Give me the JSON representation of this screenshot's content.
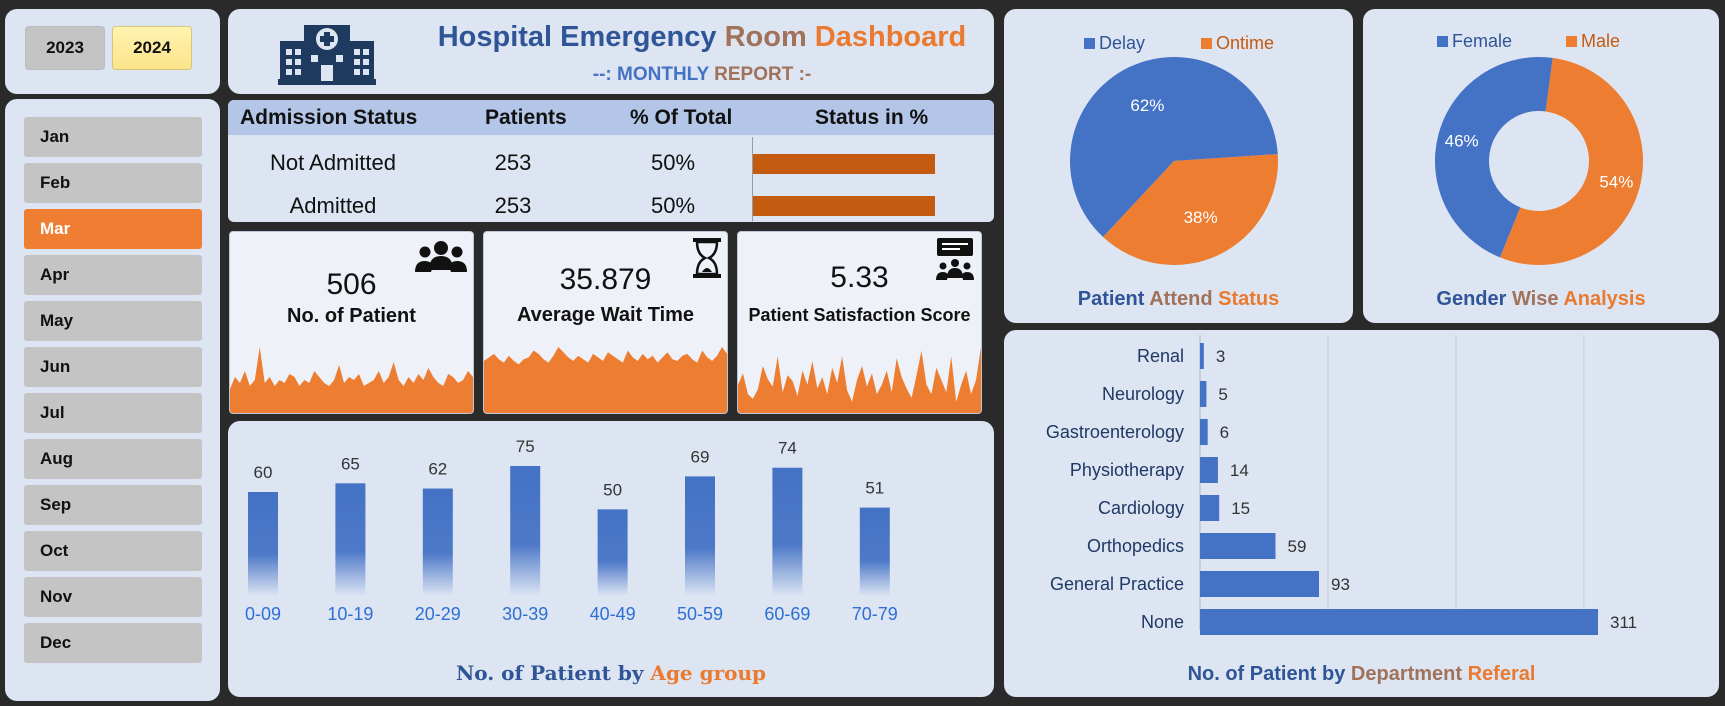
{
  "years": [
    {
      "label": "2023",
      "selected": false
    },
    {
      "label": "2024",
      "selected": true
    }
  ],
  "months": [
    {
      "label": "Jan",
      "selected": false
    },
    {
      "label": "Feb",
      "selected": false
    },
    {
      "label": "Mar",
      "selected": true
    },
    {
      "label": "Apr",
      "selected": false
    },
    {
      "label": "May",
      "selected": false
    },
    {
      "label": "Jun",
      "selected": false
    },
    {
      "label": "Jul",
      "selected": false
    },
    {
      "label": "Aug",
      "selected": false
    },
    {
      "label": "Sep",
      "selected": false
    },
    {
      "label": "Oct",
      "selected": false
    },
    {
      "label": "Nov",
      "selected": false
    },
    {
      "label": "Dec",
      "selected": false
    }
  ],
  "header": {
    "title_part1": "Hospital Emergency ",
    "title_part2": "Room ",
    "title_part3": "Dashboard",
    "subtitle_part1": "--: MONTHLY ",
    "subtitle_part2": "REPORT  :-",
    "icon": "hospital-icon"
  },
  "admission": {
    "headers": [
      "Admission Status",
      "Patients",
      "% Of Total",
      "Status in %"
    ],
    "rows": [
      {
        "status": "Not Admitted",
        "patients": "253",
        "pct": "50%",
        "share": 0.5
      },
      {
        "status": "Admitted",
        "patients": "253",
        "pct": "50%",
        "share": 0.5
      }
    ]
  },
  "kpis": [
    {
      "value": "506",
      "label": "No. of Patient",
      "icon": "people-group-icon"
    },
    {
      "value": "35.879",
      "label": "Average Wait Time",
      "icon": "hourglass-icon"
    },
    {
      "value": "5.33",
      "label": "Patient Satisfaction Score",
      "icon": "presentation-audience-icon"
    }
  ],
  "colors": {
    "accent_orange": "#ed7d31",
    "accent_blue": "#4472c4",
    "title_blue": "#2f5597",
    "bar_dark_orange": "#c55a11"
  },
  "chart_data": [
    {
      "type": "bar",
      "title": "No. of Patient by Age group",
      "title_part1": "No. of Patient by ",
      "title_part2": "Age group",
      "categories": [
        "0-09",
        "10-19",
        "20-29",
        "30-39",
        "40-49",
        "50-59",
        "60-69",
        "70-79"
      ],
      "values": [
        60,
        65,
        62,
        75,
        50,
        69,
        74,
        51
      ],
      "ylim": [
        0,
        80
      ]
    },
    {
      "type": "pie",
      "title": "Patient Attend Status",
      "title_part1": "Patient ",
      "title_part2": "Attend ",
      "title_part3": "Status",
      "legend_position": "top",
      "slices": [
        {
          "name": "Delay",
          "value": 62,
          "label": "62%",
          "color": "#4472c4"
        },
        {
          "name": "Ontime",
          "value": 38,
          "label": "38%",
          "color": "#ed7d31"
        }
      ]
    },
    {
      "type": "pie",
      "title": "Gender Wise Analysis",
      "title_part1": "Gender ",
      "title_part2": "Wise ",
      "title_part3": "Analysis",
      "donut": true,
      "legend_position": "top",
      "slices": [
        {
          "name": "Female",
          "value": 46,
          "label": "46%",
          "color": "#4472c4"
        },
        {
          "name": "Male",
          "value": 54,
          "label": "54%",
          "color": "#ed7d31"
        }
      ]
    },
    {
      "type": "bar",
      "orientation": "horizontal",
      "title": "No. of Patient by Department Referal",
      "title_part1": "No. of Patient by ",
      "title_part2": "Department ",
      "title_part3": "Referal",
      "categories": [
        "Renal",
        "Neurology",
        "Gastroenterology",
        "Physiotherapy",
        "Cardiology",
        "Orthopedics",
        "General Practice",
        "None"
      ],
      "values": [
        3,
        5,
        6,
        14,
        15,
        59,
        93,
        311
      ],
      "xlim": [
        0,
        400
      ],
      "grid": true
    }
  ],
  "sparklines": [
    [
      8,
      12,
      10,
      14,
      9,
      11,
      22,
      10,
      12,
      9,
      11,
      10,
      13,
      12,
      9,
      11,
      10,
      14,
      12,
      10,
      9,
      11,
      16,
      10,
      12,
      11,
      13,
      9,
      10,
      11,
      14,
      10,
      12,
      17,
      11,
      9,
      12,
      10,
      13,
      11,
      15,
      12,
      10,
      9,
      13,
      12,
      10,
      11,
      14,
      12
    ],
    [
      30,
      32,
      34,
      31,
      29,
      33,
      30,
      28,
      31,
      32,
      36,
      34,
      31,
      29,
      33,
      38,
      35,
      32,
      30,
      33,
      31,
      29,
      34,
      32,
      30,
      35,
      33,
      31,
      29,
      36,
      32,
      30,
      34,
      31,
      33,
      29,
      32,
      35,
      31,
      30,
      33,
      34,
      31,
      29,
      36,
      32,
      30,
      33,
      38,
      34
    ],
    [
      30,
      42,
      20,
      15,
      25,
      50,
      36,
      28,
      60,
      22,
      40,
      34,
      18,
      45,
      30,
      55,
      26,
      38,
      20,
      48,
      32,
      60,
      24,
      12,
      35,
      50,
      28,
      42,
      20,
      30,
      45,
      22,
      58,
      38,
      26,
      16,
      40,
      66,
      30,
      20,
      48,
      35,
      22,
      60,
      12,
      30,
      45,
      20,
      35,
      70
    ]
  ]
}
